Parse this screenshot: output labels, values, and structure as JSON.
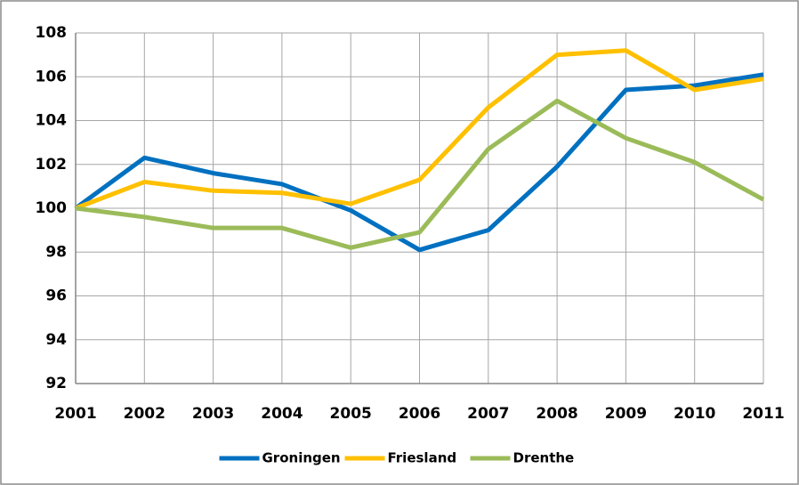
{
  "chart_data": {
    "type": "line",
    "categories": [
      "2001",
      "2002",
      "2003",
      "2004",
      "2005",
      "2006",
      "2007",
      "2008",
      "2009",
      "2010",
      "2011"
    ],
    "series": [
      {
        "name": "Groningen",
        "color": "#0070c0",
        "values": [
          100.0,
          102.3,
          101.6,
          101.1,
          99.9,
          98.1,
          99.0,
          101.9,
          105.4,
          105.6,
          106.1
        ]
      },
      {
        "name": "Friesland",
        "color": "#ffc000",
        "values": [
          100.0,
          101.2,
          100.8,
          100.7,
          100.2,
          101.3,
          104.6,
          107.0,
          107.2,
          105.4,
          105.9
        ]
      },
      {
        "name": "Drenthe",
        "color": "#9bbb59",
        "values": [
          100.0,
          99.6,
          99.1,
          99.1,
          98.2,
          98.9,
          102.7,
          104.9,
          103.2,
          102.1,
          100.4
        ]
      }
    ],
    "ylim": [
      92,
      108
    ],
    "yticks": [
      92,
      94,
      96,
      98,
      100,
      102,
      104,
      106,
      108
    ],
    "grid": true,
    "legend": "bottom"
  }
}
